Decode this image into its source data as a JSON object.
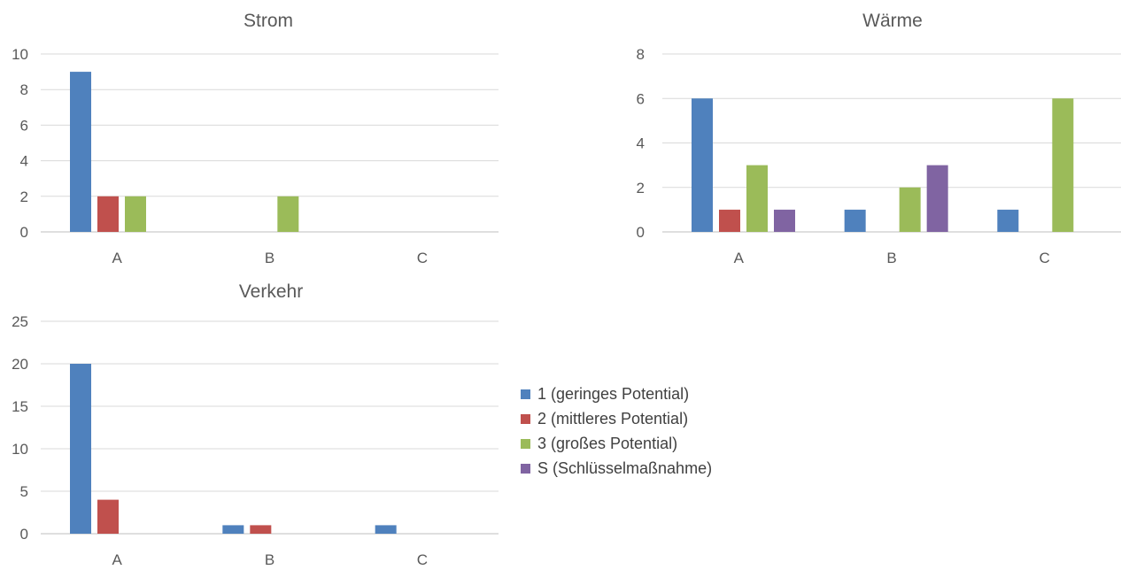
{
  "chart_data": [
    {
      "type": "bar",
      "title": "Strom",
      "categories": [
        "A",
        "B",
        "C"
      ],
      "ylim": [
        0,
        10
      ],
      "yticks": [
        0,
        2,
        4,
        6,
        8,
        10
      ],
      "grid": true,
      "series": [
        {
          "name": "1 (geringes Potential)",
          "color": "#4f81bd",
          "values": [
            9,
            0,
            0
          ]
        },
        {
          "name": "2 (mittleres Potential)",
          "color": "#c0504d",
          "values": [
            2,
            0,
            0
          ]
        },
        {
          "name": "3 (großes Potential)",
          "color": "#9bbb59",
          "values": [
            2,
            2,
            0
          ]
        }
      ]
    },
    {
      "type": "bar",
      "title": "Wärme",
      "categories": [
        "A",
        "B",
        "C"
      ],
      "ylim": [
        0,
        8
      ],
      "yticks": [
        0,
        2,
        4,
        6,
        8
      ],
      "grid": true,
      "series": [
        {
          "name": "1 (geringes Potential)",
          "color": "#4f81bd",
          "values": [
            6,
            1,
            1
          ]
        },
        {
          "name": "2 (mittleres Potential)",
          "color": "#c0504d",
          "values": [
            1,
            0,
            0
          ]
        },
        {
          "name": "3 (großes Potential)",
          "color": "#9bbb59",
          "values": [
            3,
            2,
            6
          ]
        },
        {
          "name": "S (Schlüsselmaßnahme)",
          "color": "#8064a2",
          "values": [
            1,
            3,
            0
          ]
        }
      ]
    },
    {
      "type": "bar",
      "title": "Verkehr",
      "categories": [
        "A",
        "B",
        "C"
      ],
      "ylim": [
        0,
        25
      ],
      "yticks": [
        0,
        5,
        10,
        15,
        20,
        25
      ],
      "grid": true,
      "series": [
        {
          "name": "1 (geringes Potential)",
          "color": "#4f81bd",
          "values": [
            20,
            1,
            1
          ]
        },
        {
          "name": "2 (mittleres Potential)",
          "color": "#c0504d",
          "values": [
            4,
            1,
            0
          ]
        }
      ]
    }
  ],
  "legend": {
    "placement": "right",
    "items": [
      {
        "label": "1 (geringes Potential)",
        "color": "#4f81bd"
      },
      {
        "label": "2 (mittleres Potential)",
        "color": "#c0504d"
      },
      {
        "label": "3 (großes Potential)",
        "color": "#9bbb59"
      },
      {
        "label": "S (Schlüsselmaßnahme)",
        "color": "#8064a2"
      }
    ]
  }
}
